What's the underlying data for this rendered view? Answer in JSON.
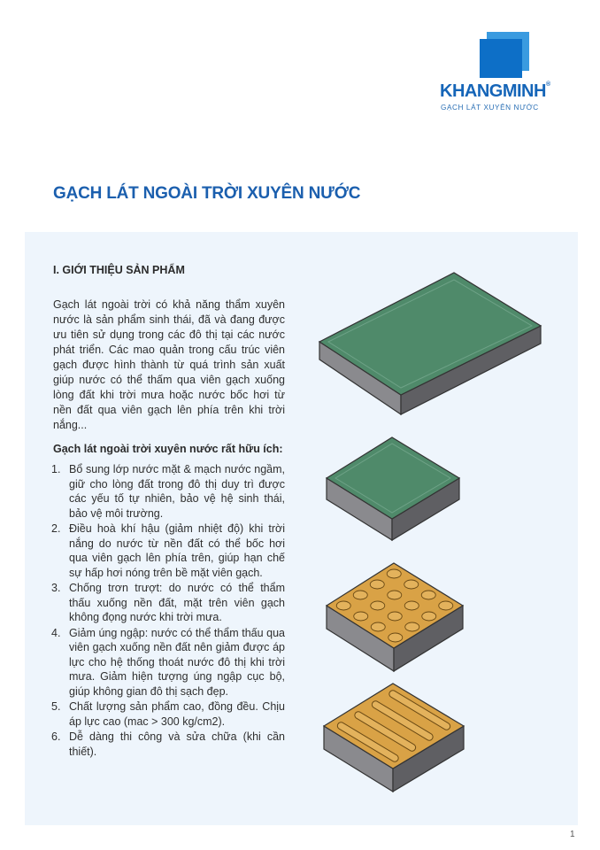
{
  "logo": {
    "name": "KHANGMINH",
    "registered": "®",
    "tagline": "GẠCH LÁT XUYÊN NƯỚC"
  },
  "title": "GẠCH LÁT NGOÀI TRỜI XUYÊN NƯỚC",
  "section": {
    "heading": "I.  GIỚI THIỆU SẢN PHẨM",
    "intro": "Gạch lát ngoài trời có khả năng thẩm xuyên nước là sản phẩm sinh thái, đã và đang được ưu tiên sử dụng trong các đô thị tại các nước phát triển. Các mao quản trong cấu trúc viên gạch được hình thành từ quá trình sản xuất giúp nước có thể thấm qua viên gạch xuống lòng đất khi trời mưa hoặc nước bốc hơi từ nền đất qua viên gạch lên phía trên khi trời nắng...",
    "benefits_heading": "Gạch lát ngoài trời xuyên nước rất hữu ích:",
    "benefits": [
      {
        "num": "1.",
        "text": "Bổ sung lớp nước mặt & mạch nước ngầm, giữ cho lòng đất trong đô thị duy trì được các yếu tố tự nhiên, bảo vệ hệ sinh thái, bảo vệ môi trường."
      },
      {
        "num": "2.",
        "text": "Điều hoà khí hậu (giảm nhiệt độ) khi trời nắng do nước từ nền đất có thể bốc hơi qua viên gạch lên phía trên, giúp hạn chế sự hấp hơi nóng trên bề mặt viên gạch."
      },
      {
        "num": "3.",
        "text": "Chống trơn trượt: do nước có thể thẩm thấu xuống nền đất, mặt trên viên gạch không đọng nước khi trời mưa."
      },
      {
        "num": "4.",
        "text": "Giảm úng ngập: nước có thể thẩm thấu qua viên gạch xuống nền đất nên giảm được áp lực cho hệ thống thoát nước đô thị khi trời mưa. Giảm hiện tượng úng ngập cục bộ, giúp không gian đô thị sạch đẹp."
      },
      {
        "num": "5.",
        "text": "Chất lượng sản phẩm cao, đồng đều. Chịu áp lực cao (mac > 300 kg/cm2)."
      },
      {
        "num": "6.",
        "text": "Dễ dàng thi công và sửa chữa (khi cần thiết)."
      }
    ]
  },
  "page_number": "1",
  "colors": {
    "brand_blue": "#1b5fae",
    "panel_bg": "#eef5fc",
    "green_top": "#4f8a6a",
    "yellow_top": "#d9a246",
    "brick_side": "#6e6e72"
  },
  "illustrations": [
    "green-rectangular-paver",
    "green-square-paver",
    "tactile-dot-paver",
    "tactile-bar-paver"
  ]
}
